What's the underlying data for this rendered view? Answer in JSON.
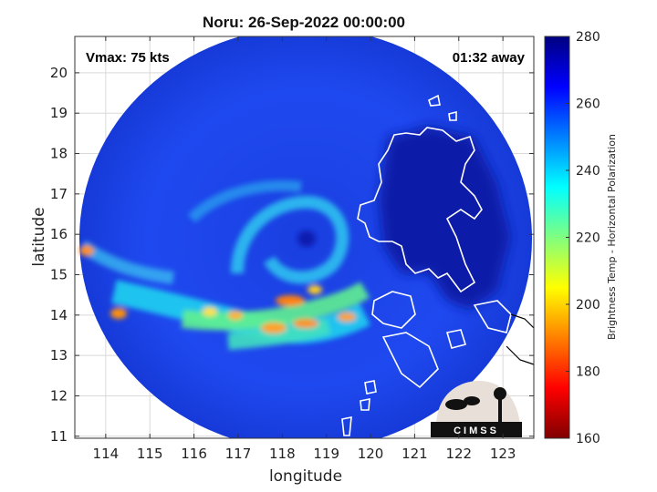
{
  "chart_data": {
    "type": "heatmap",
    "title": "Noru: 26-Sep-2022 00:00:00",
    "xlabel": "longitude",
    "ylabel": "latitude",
    "xlim": [
      113.3,
      123.7
    ],
    "ylim": [
      10.95,
      20.9
    ],
    "xticks": [
      114,
      115,
      116,
      117,
      118,
      119,
      120,
      121,
      122,
      123
    ],
    "yticks": [
      11,
      12,
      13,
      14,
      15,
      16,
      17,
      18,
      19,
      20
    ],
    "grid": true,
    "annotations": {
      "left": "Vmax: 75 kts",
      "right": "01:32 away"
    },
    "storm_center": {
      "lon": 118.95,
      "lat": 15.95
    },
    "colorbar": {
      "label": "Brightness Temp - Horizontal Polarization",
      "range": [
        160,
        280
      ],
      "ticks": [
        160,
        180,
        200,
        220,
        240,
        260,
        280
      ],
      "colormap": "jet"
    },
    "logo_text": "CIMSS"
  }
}
